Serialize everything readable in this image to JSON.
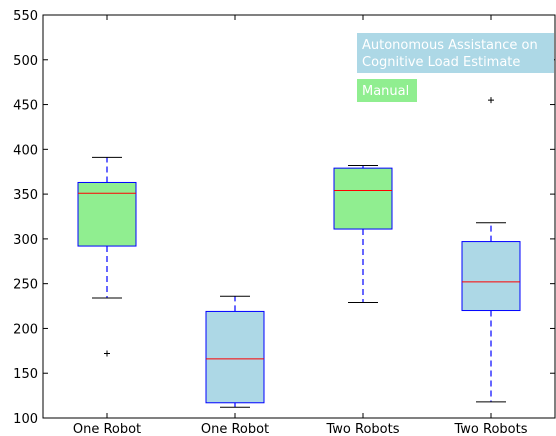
{
  "chart_data": {
    "type": "box",
    "title": "",
    "xlabel": "",
    "ylabel": "",
    "ylim": [
      100,
      550
    ],
    "yticks": [
      100,
      150,
      200,
      250,
      300,
      350,
      400,
      450,
      500,
      550
    ],
    "categories": [
      "One Robot",
      "One Robot",
      "Two Robots",
      "Two Robots"
    ],
    "legend": {
      "placement": "top-right",
      "entries": [
        {
          "label": "Autonomous Assistance on Cognitive Load Estimate",
          "lines": [
            "Autonomous Assistance on",
            "Cognitive Load Estimate"
          ],
          "color": "#add8e6"
        },
        {
          "label": "Manual",
          "lines": [
            "Manual"
          ],
          "color": "#90ee90"
        }
      ]
    },
    "boxes": [
      {
        "category": "One Robot",
        "group": "Manual",
        "whisker_low": 234,
        "q1": 292,
        "median": 351,
        "q3": 363,
        "whisker_high": 391,
        "outliers": [
          172
        ]
      },
      {
        "category": "One Robot",
        "group": "Autonomous Assistance on Cognitive Load Estimate",
        "whisker_low": 112,
        "q1": 117,
        "median": 166,
        "q3": 219,
        "whisker_high": 236,
        "outliers": []
      },
      {
        "category": "Two Robots",
        "group": "Manual",
        "whisker_low": 229,
        "q1": 311,
        "median": 354,
        "q3": 379,
        "whisker_high": 382,
        "outliers": []
      },
      {
        "category": "Two Robots",
        "group": "Autonomous Assistance on Cognitive Load Estimate",
        "whisker_low": 118,
        "q1": 220,
        "median": 252,
        "q3": 297,
        "whisker_high": 318,
        "outliers": [
          455
        ]
      }
    ],
    "colors": {
      "manual": "#90ee90",
      "autonomous": "#add8e6",
      "median": "#ff0000",
      "whisker": "#0000ff",
      "box_edge": "#0000ff"
    }
  }
}
